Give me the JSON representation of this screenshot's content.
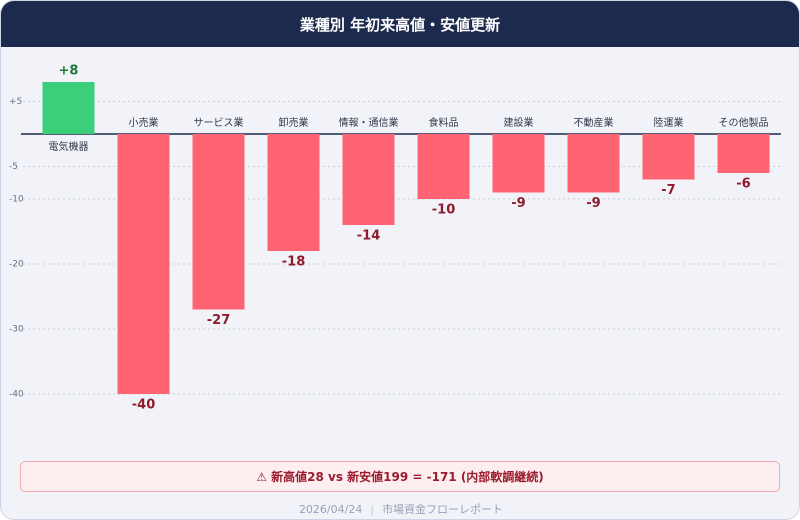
{
  "chart_data": {
    "type": "bar",
    "title": "業種別 年初来高値・安値更新",
    "categories": [
      "電気機器",
      "小売業",
      "サービス業",
      "卸売業",
      "情報・通信業",
      "食料品",
      "建設業",
      "不動産業",
      "陸運業",
      "その他製品"
    ],
    "values": [
      8,
      -40,
      -27,
      -18,
      -14,
      -10,
      -9,
      -9,
      -7,
      -6
    ],
    "value_labels": [
      "+8",
      "-40",
      "-27",
      "-18",
      "-14",
      "-10",
      "-9",
      "-9",
      "-7",
      "-6"
    ],
    "positive_color": "#3ccf7b",
    "negative_color": "#ff6473",
    "ylim": [
      -41,
      13
    ],
    "yticks": [
      {
        "value": 5,
        "label": "+5"
      },
      -5,
      -10,
      -20,
      -30,
      -40
    ],
    "grid": true,
    "annotation": "⚠ 新高値28 vs 新安値199 = -171 (内部軟調継続)",
    "date": "2026/04/24",
    "source": "市場資金フローレポート"
  }
}
